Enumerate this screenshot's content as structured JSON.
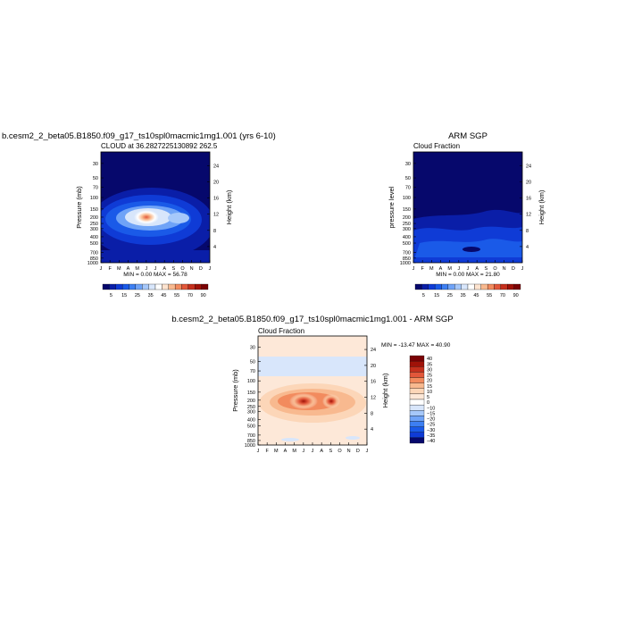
{
  "chart_data": [
    {
      "type": "heatmap",
      "title": "b.cesm2_2_beta05.B1850.f09_g17_ts10spl0macmic1mg1.001 (yrs 6-10)",
      "subtitle": "CLOUD at 36.2827225130892 262.5",
      "ylabel": "Pressure (mb)",
      "y2label": "Height (km)",
      "x_ticks": [
        "J",
        "F",
        "M",
        "A",
        "M",
        "J",
        "J",
        "A",
        "S",
        "O",
        "N",
        "D",
        "J"
      ],
      "y_ticks": [
        30,
        50,
        70,
        100,
        150,
        200,
        250,
        300,
        400,
        500,
        700,
        850,
        1000
      ],
      "y2_ticks": [
        4,
        8,
        12,
        16,
        20,
        24
      ],
      "ylim": [
        1000,
        20
      ],
      "min_max": "MIN =     0.00  MAX =    56.78",
      "colorbar_labels": [
        "5",
        "15",
        "25",
        "35",
        "45",
        "55",
        "70",
        "90"
      ],
      "colorbar_colors": [
        "#06086c",
        "#0a1ea8",
        "#0f3bd6",
        "#1a5ae8",
        "#3d7ff2",
        "#6fa3f7",
        "#a6c8fa",
        "#d8e6fb",
        "#ffffff",
        "#fde3cf",
        "#f8b98f",
        "#f28b5e",
        "#e2573a",
        "#c5301d",
        "#a01208",
        "#7a0205"
      ],
      "max_value": 56.78
    },
    {
      "type": "heatmap",
      "title": "ARM SGP",
      "subtitle": "Cloud Fraction",
      "ylabel": "pressure level",
      "y2label": "Height (km)",
      "x_ticks": [
        "J",
        "F",
        "M",
        "A",
        "M",
        "J",
        "J",
        "A",
        "S",
        "O",
        "N",
        "D",
        "J"
      ],
      "y_ticks": [
        30,
        50,
        70,
        100,
        150,
        200,
        250,
        300,
        400,
        500,
        700,
        850,
        1000
      ],
      "y2_ticks": [
        4,
        8,
        12,
        16,
        20,
        24
      ],
      "ylim": [
        1000,
        20
      ],
      "min_max": "MIN =     0.00  MAX =    21.80",
      "colorbar_labels": [
        "5",
        "15",
        "25",
        "35",
        "45",
        "55",
        "70",
        "90"
      ],
      "max_value": 21.8
    },
    {
      "type": "heatmap",
      "title": "b.cesm2_2_beta05.B1850.f09_g17_ts10spl0macmic1mg1.001 - ARM SGP",
      "subtitle": "Cloud Fraction",
      "ylabel": "Pressure (mb)",
      "y2label": "Height (km)",
      "x_ticks": [
        "J",
        "F",
        "M",
        "A",
        "M",
        "J",
        "J",
        "A",
        "S",
        "O",
        "N",
        "D",
        "J"
      ],
      "y_ticks": [
        30,
        50,
        70,
        100,
        150,
        200,
        250,
        300,
        400,
        500,
        700,
        850,
        1000
      ],
      "y2_ticks": [
        4,
        8,
        12,
        16,
        20,
        24
      ],
      "ylim": [
        1000,
        20
      ],
      "min_max": "MIN = -13.47  MAX =   40.90",
      "colorbar_labels": [
        "40",
        "35",
        "30",
        "25",
        "20",
        "15",
        "10",
        "5",
        "0",
        "−10",
        "−15",
        "−20",
        "−25",
        "−30",
        "−35",
        "−40"
      ],
      "colorbar_colors": [
        "#7a0205",
        "#a01208",
        "#c5301d",
        "#e2573a",
        "#f28b5e",
        "#f8b98f",
        "#fcd6b8",
        "#fde8d8",
        "#ffffff",
        "#d8e6fb",
        "#a6c8fa",
        "#6fa3f7",
        "#3d7ff2",
        "#1a5ae8",
        "#0f3bd6",
        "#06086c"
      ]
    }
  ]
}
